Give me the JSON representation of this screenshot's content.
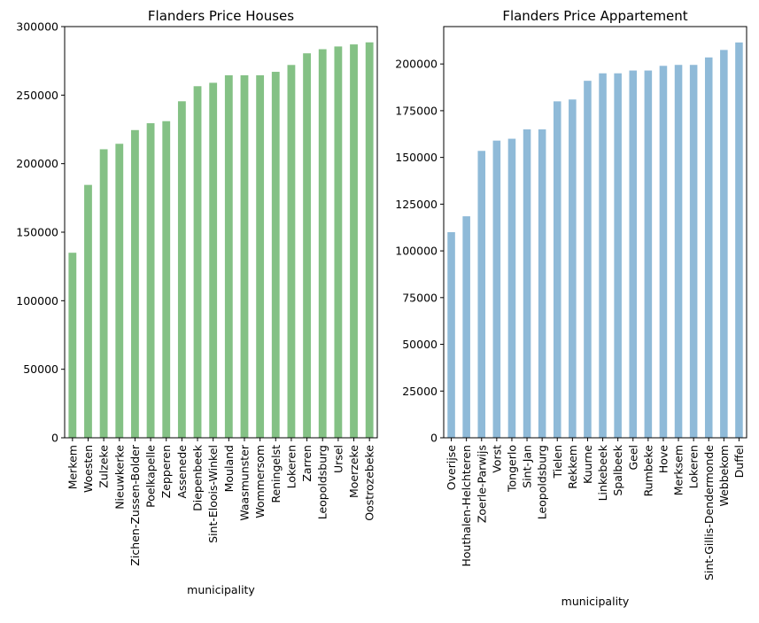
{
  "chart_data": [
    {
      "type": "bar",
      "title": "Flanders  Price Houses",
      "xlabel": "municipality",
      "ylabel": "",
      "ylim": [
        0,
        300000
      ],
      "yticks": [
        0,
        50000,
        100000,
        150000,
        200000,
        250000,
        300000
      ],
      "color": "#84c185",
      "legend": "none",
      "grid": false,
      "categories": [
        "Merkem",
        "Woesten",
        "Zulzeke",
        "Nieuwkerke",
        "Zichen-Zussen-Bolder",
        "Poelkapelle",
        "Zepperen",
        "Assenede",
        "Diepenbeek",
        "Sint-Eloois-Winkel",
        "Mouland",
        "Waasmunster",
        "Wommersom",
        "Reningelst",
        "Lokeren",
        "Zarren",
        "Leopoldsburg",
        "Ursel",
        "Moerzeke",
        "Oostrozebeke"
      ],
      "values": [
        135000,
        184500,
        210500,
        214500,
        224500,
        229500,
        231000,
        245500,
        256500,
        259000,
        264500,
        264500,
        264500,
        267000,
        272000,
        280500,
        283500,
        285500,
        287000,
        288500
      ]
    },
    {
      "type": "bar",
      "title": "Flanders Price Appartement",
      "xlabel": "municipality",
      "ylabel": "",
      "ylim": [
        0,
        220000
      ],
      "yticks": [
        0,
        25000,
        50000,
        75000,
        100000,
        125000,
        150000,
        175000,
        200000
      ],
      "color": "#8fbad8",
      "legend": "none",
      "grid": false,
      "categories": [
        "Overijse",
        "Houthalen-Helchteren",
        "Zoerle-Parwijs",
        "Vorst",
        "Tongerlo",
        "Sint-Jan",
        "Leopoldsburg",
        "Tielen",
        "Rekkem",
        "Kuurne",
        "Linkebeek",
        "Spalbeek",
        "Geel",
        "Rumbeke",
        "Hove",
        "Merksem",
        "Lokeren",
        "Sint-Gillis-Dendermonde",
        "Webbekom",
        "Duffel"
      ],
      "values": [
        110000,
        118500,
        153500,
        159000,
        160000,
        165000,
        165000,
        180000,
        181000,
        191000,
        195000,
        195000,
        196500,
        196500,
        199000,
        199500,
        199500,
        203500,
        207500,
        211500
      ]
    }
  ]
}
